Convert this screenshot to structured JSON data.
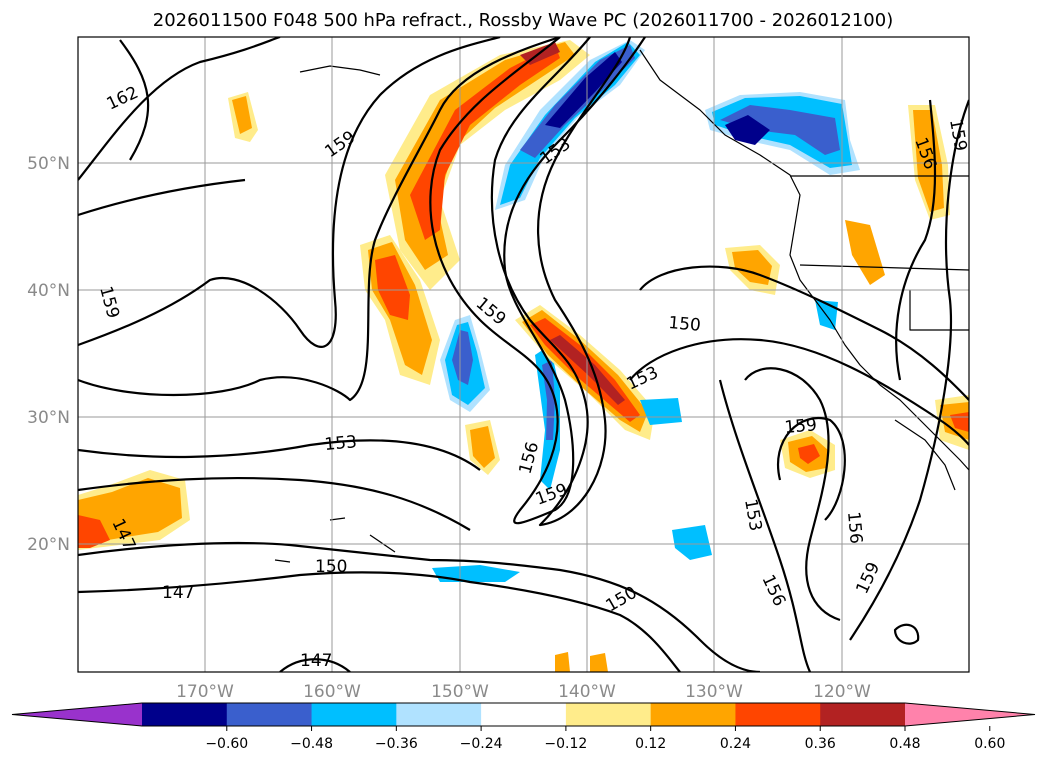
{
  "title": "2026011500 F048 500 hPa refract., Rossby Wave PC (2026011700 - 2026012100)",
  "map": {
    "lon_ticks": [
      "170°W",
      "160°W",
      "150°W",
      "140°W",
      "130°W",
      "120°W"
    ],
    "lat_ticks": [
      "50°N",
      "40°N",
      "30°N",
      "20°N"
    ],
    "contour_labels": [
      "162",
      "159",
      "159",
      "159",
      "153",
      "150",
      "153",
      "159",
      "156",
      "159",
      "153",
      "156",
      "156",
      "159",
      "150",
      "147",
      "150",
      "147",
      "153",
      "156",
      "159",
      "147"
    ]
  },
  "colorbar": {
    "ticks": [
      "−0.60",
      "−0.48",
      "−0.36",
      "−0.24",
      "−0.12",
      "0.12",
      "0.24",
      "0.36",
      "0.48",
      "0.60"
    ],
    "colors": [
      "#9932cc",
      "#00008b",
      "#3a5fcd",
      "#00bfff",
      "#b0e2ff",
      "#ffffff",
      "#ffec8b",
      "#ffa500",
      "#ff4500",
      "#b22222",
      "#ff82ab"
    ],
    "extend": "both"
  }
}
